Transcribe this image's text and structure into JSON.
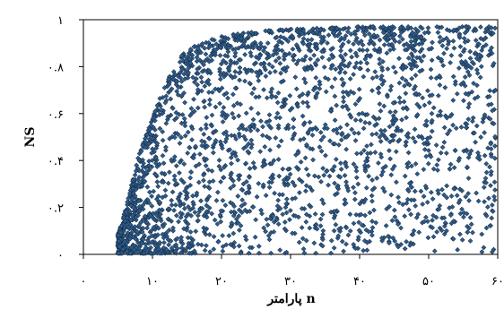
{
  "chart_data": {
    "type": "scatter",
    "title": "",
    "xlabel": "پارامتر n",
    "ylabel": "NS",
    "xlim": [
      0,
      60
    ],
    "ylim": [
      0,
      1
    ],
    "xticks": [
      0,
      10,
      20,
      30,
      40,
      50,
      60
    ],
    "yticks": [
      0,
      0.2,
      0.4,
      0.6,
      0.8,
      1
    ],
    "xtick_labels": [
      "۰",
      "۱۰",
      "۲۰",
      "۳۰",
      "۴۰",
      "۵۰",
      "۶۰"
    ],
    "ytick_labels": [
      "۰",
      "۰.۲",
      "۰.۴",
      "۰.۶",
      "۰.۸",
      "۱"
    ],
    "grid": false,
    "legend": "none",
    "marker": "diamond",
    "marker_color": "#2f5a85",
    "marker_edge_color": "#0b1f3a",
    "x_min_data": 5,
    "point_count_estimate": 2600,
    "upper_envelope": [
      [
        5,
        0.08
      ],
      [
        6,
        0.18
      ],
      [
        7,
        0.3
      ],
      [
        8,
        0.42
      ],
      [
        9,
        0.5
      ],
      [
        10,
        0.58
      ],
      [
        11,
        0.66
      ],
      [
        12,
        0.73
      ],
      [
        13,
        0.79
      ],
      [
        14,
        0.84
      ],
      [
        15,
        0.87
      ],
      [
        17,
        0.9
      ],
      [
        20,
        0.93
      ],
      [
        25,
        0.95
      ],
      [
        30,
        0.96
      ],
      [
        40,
        0.97
      ],
      [
        50,
        0.97
      ],
      [
        60,
        0.97
      ]
    ]
  }
}
